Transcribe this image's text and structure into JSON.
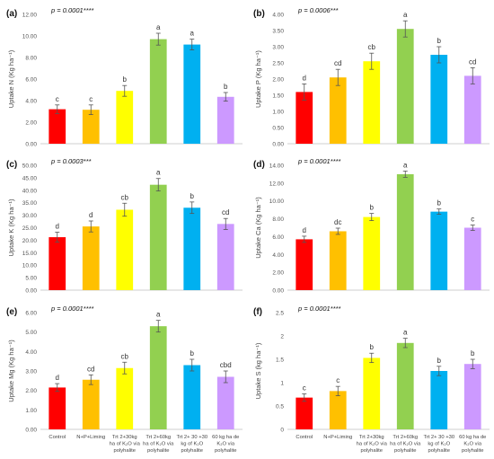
{
  "colors": [
    "#ff0000",
    "#ffc000",
    "#ffff00",
    "#92d050",
    "#00b0f0",
    "#cc99ff"
  ],
  "categories": [
    [
      "Control"
    ],
    [
      "N+P+Liming"
    ],
    [
      "Trt 2+30kg",
      "ha of K₂O via",
      "polyhalite"
    ],
    [
      "Trt 2+60kg",
      "ha of K₂O via",
      "polyhalite"
    ],
    [
      "Trt 2+ 30 +30",
      "kg of K₂O",
      "polyhalite"
    ],
    [
      "60 kg ha de",
      "K₂O via",
      "polyhalite"
    ]
  ],
  "chart_data": [
    {
      "type": "bar",
      "panel": "(a)",
      "p_value": "p = 0.0001****",
      "ylabel": "Uptake N (Kg ha⁻¹)",
      "ylim": [
        0,
        12
      ],
      "yticks": [
        "0.00",
        "2.00",
        "4.00",
        "6.00",
        "8.00",
        "10.00",
        "12.00"
      ],
      "values": [
        3.2,
        3.15,
        4.9,
        9.7,
        9.2,
        4.35
      ],
      "errors": [
        0.4,
        0.45,
        0.5,
        0.55,
        0.5,
        0.4
      ],
      "letters": [
        "c",
        "c",
        "b",
        "a",
        "a",
        "b"
      ]
    },
    {
      "type": "bar",
      "panel": "(b)",
      "p_value": "p = 0.0006***",
      "ylabel": "Uptake P (Kg ha⁻¹)",
      "ylim": [
        0,
        4
      ],
      "yticks": [
        "0.00",
        "0.50",
        "1.00",
        "1.50",
        "2.00",
        "2.50",
        "3.00",
        "3.50",
        "4.00"
      ],
      "values": [
        1.6,
        2.05,
        2.55,
        3.55,
        2.75,
        2.1
      ],
      "errors": [
        0.25,
        0.25,
        0.25,
        0.25,
        0.25,
        0.25
      ],
      "letters": [
        "d",
        "cd",
        "cb",
        "a",
        "b",
        "cd"
      ]
    },
    {
      "type": "bar",
      "panel": "(c)",
      "p_value": "p = 0.0003***",
      "ylabel": "Uptake K (Kg ha⁻¹)",
      "ylim": [
        0,
        50
      ],
      "yticks": [
        "0.00",
        "5.00",
        "10.00",
        "15.00",
        "20.00",
        "25.00",
        "30.00",
        "35.00",
        "40.00",
        "45.00",
        "50.00"
      ],
      "values": [
        21.2,
        25.5,
        32.2,
        42.2,
        33,
        26.5
      ],
      "errors": [
        2,
        2.2,
        2.6,
        2.5,
        2.3,
        2.2
      ],
      "letters": [
        "d",
        "d",
        "cb",
        "a",
        "b",
        "cd"
      ]
    },
    {
      "type": "bar",
      "panel": "(d)",
      "p_value": "p = 0.0001****",
      "ylabel": "Uptake Ca (Kg ha⁻¹)",
      "ylim": [
        0,
        14
      ],
      "yticks": [
        "0.00",
        "2.00",
        "4.00",
        "6.00",
        "8.00",
        "10.00",
        "12.00",
        "14.00"
      ],
      "values": [
        5.7,
        6.6,
        8.2,
        13.0,
        8.8,
        7.0
      ],
      "errors": [
        0.35,
        0.35,
        0.4,
        0.35,
        0.3,
        0.3
      ],
      "letters": [
        "d",
        "dc",
        "b",
        "a",
        "b",
        "c"
      ]
    },
    {
      "type": "bar",
      "panel": "(e)",
      "p_value": "p = 0.0001****",
      "ylabel": "Uptake Mg (Kg ha⁻¹)",
      "ylim": [
        0,
        6
      ],
      "yticks": [
        "0.00",
        "1.00",
        "2.00",
        "3.00",
        "4.00",
        "5.00",
        "6.00"
      ],
      "values": [
        2.15,
        2.55,
        3.15,
        5.3,
        3.3,
        2.7
      ],
      "errors": [
        0.2,
        0.25,
        0.3,
        0.3,
        0.3,
        0.3
      ],
      "letters": [
        "d",
        "cd",
        "cb",
        "a",
        "b",
        "cbd"
      ]
    },
    {
      "type": "bar",
      "panel": "(f)",
      "p_value": "p = 0.0001****",
      "ylabel": "Uptake S (kg ha⁻¹)",
      "ylim": [
        0,
        2.5
      ],
      "yticks": [
        "0",
        "0.5",
        "1",
        "1.5",
        "2",
        "2.5"
      ],
      "values": [
        0.68,
        0.82,
        1.53,
        1.85,
        1.25,
        1.4
      ],
      "errors": [
        0.08,
        0.1,
        0.1,
        0.1,
        0.1,
        0.1
      ],
      "letters": [
        "c",
        "c",
        "b",
        "a",
        "b",
        "b"
      ]
    }
  ]
}
